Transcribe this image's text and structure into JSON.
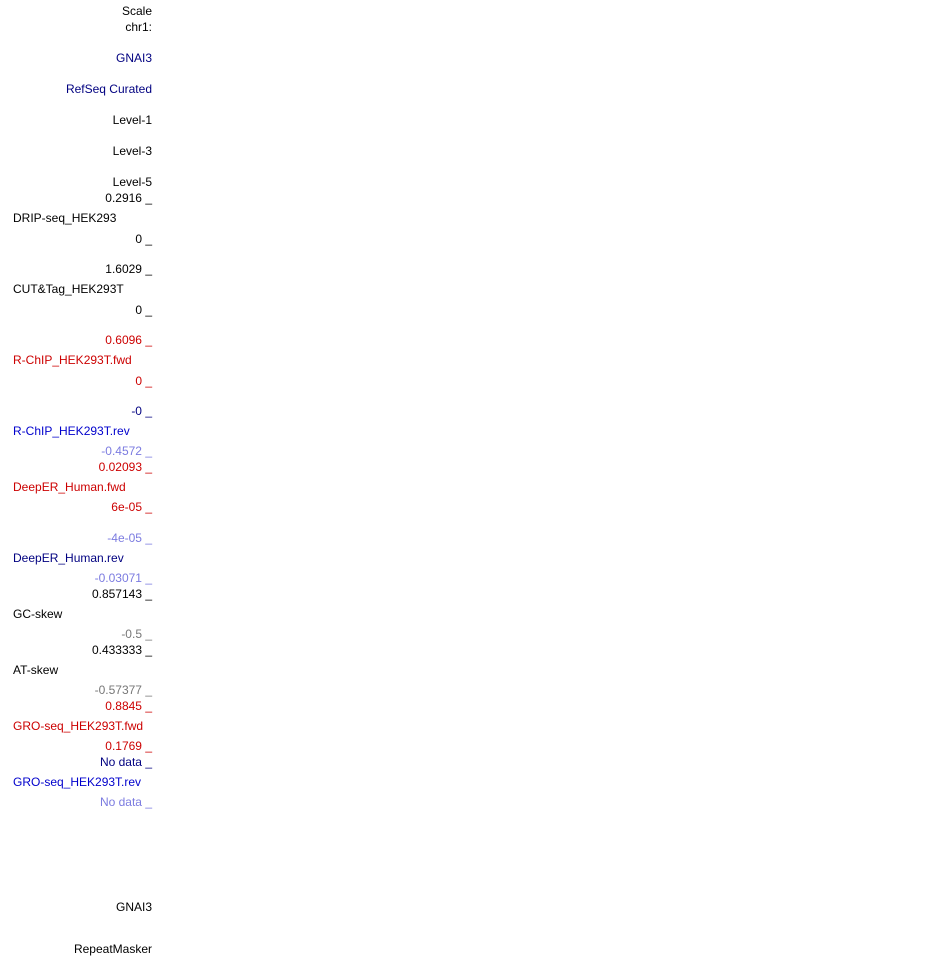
{
  "header": {
    "scale": "Scale",
    "chrom": "chr1:"
  },
  "tracks": {
    "gene_top": "GNAI3",
    "refseq": "RefSeq Curated",
    "level1": "Level-1",
    "level3": "Level-3",
    "level5": "Level-5",
    "drip": {
      "max": "0.2916 _",
      "name": "DRIP-seq_HEK293",
      "min": "0 _"
    },
    "cuttag": {
      "max": "1.6029 _",
      "name": "CUT&Tag_HEK293T",
      "min": "0 _"
    },
    "rchip_fwd": {
      "max": "0.6096 _",
      "name": "R-ChIP_HEK293T.fwd",
      "min": "0 _"
    },
    "rchip_rev": {
      "max": "-0 _",
      "name": "R-ChIP_HEK293T.rev",
      "min": "-0.4572 _"
    },
    "deeper_fwd": {
      "max": "0.02093 _",
      "name": "DeepER_Human.fwd",
      "min": "6e-05 _"
    },
    "deeper_rev": {
      "max": "-4e-05 _",
      "name": "DeepER_Human.rev",
      "min": "-0.03071 _"
    },
    "gc_skew": {
      "max": "0.857143 _",
      "name": "GC-skew",
      "min": "-0.5 _"
    },
    "at_skew": {
      "max": "0.433333 _",
      "name": "AT-skew",
      "min": "-0.57377 _"
    },
    "gro_fwd": {
      "max": "0.8845 _",
      "name": "GRO-seq_HEK293T.fwd",
      "min": "0.1769 _"
    },
    "gro_rev": {
      "max": "No data _",
      "name": "GRO-seq_HEK293T.rev",
      "min": "No data _"
    },
    "gene_bottom": "GNAI3",
    "repeatmasker": "RepeatMasker"
  },
  "colors": {
    "navy": "#000080",
    "red": "#cc0000",
    "blue": "#0000cc",
    "lightblue": "#7b7be0",
    "gray": "#777777"
  }
}
